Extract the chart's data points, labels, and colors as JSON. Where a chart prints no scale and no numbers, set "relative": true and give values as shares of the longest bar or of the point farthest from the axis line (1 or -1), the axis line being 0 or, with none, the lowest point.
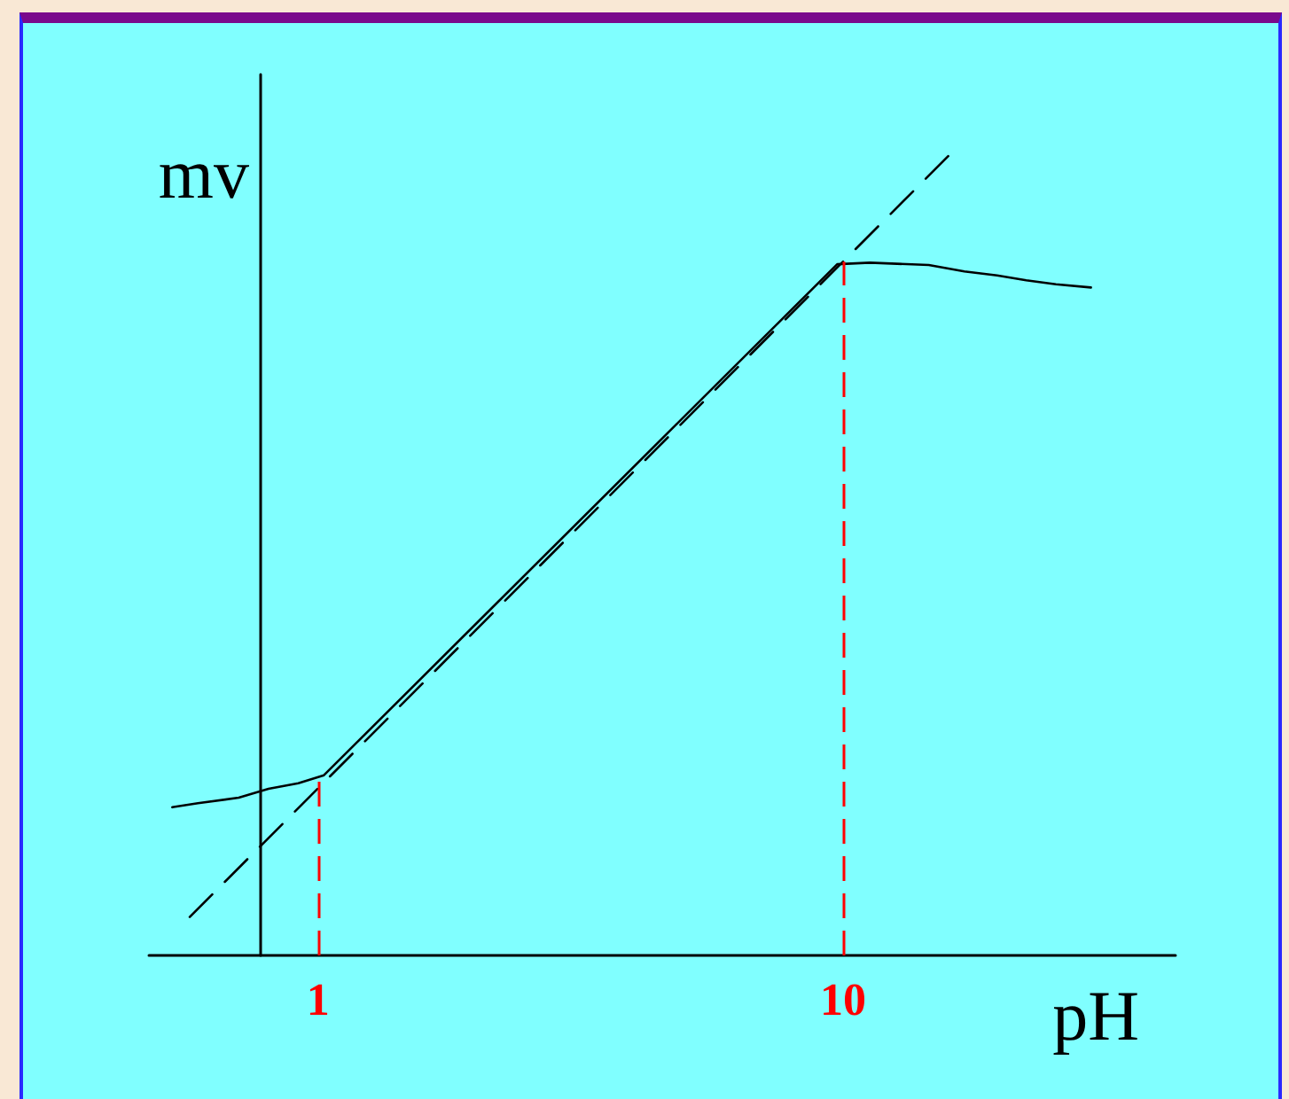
{
  "chart_data": {
    "type": "line",
    "xlabel": "pH",
    "ylabel": "mv",
    "relative": true,
    "xlim": [
      -1.9,
      15.7
    ],
    "xticks": [
      1,
      10
    ],
    "tick_labels": "x",
    "marker": "none",
    "series": [
      {
        "color": "#000000",
        "x": [
          -1.5,
          -1.06,
          -0.36,
          0.15,
          0.66,
          1.1,
          9.9,
          10.46,
          11.47,
          12.08,
          12.64,
          13.14,
          13.65,
          14.25
        ],
        "values": [
          0.185,
          0.19,
          0.197,
          0.208,
          0.215,
          0.225,
          0.863,
          0.865,
          0.862,
          0.854,
          0.849,
          0.843,
          0.838,
          0.834
        ]
      },
      {
        "color": "#000000",
        "line_style": "dashed",
        "x": [
          -1.2,
          11.83
        ],
        "values": [
          0.048,
          1
        ]
      }
    ],
    "ref_lines": [
      {
        "axis": "x",
        "value": 1,
        "color": "#ff0000",
        "line_style": "dashed"
      },
      {
        "axis": "x",
        "value": 10,
        "color": "#ff0000",
        "line_style": "dashed"
      }
    ]
  }
}
